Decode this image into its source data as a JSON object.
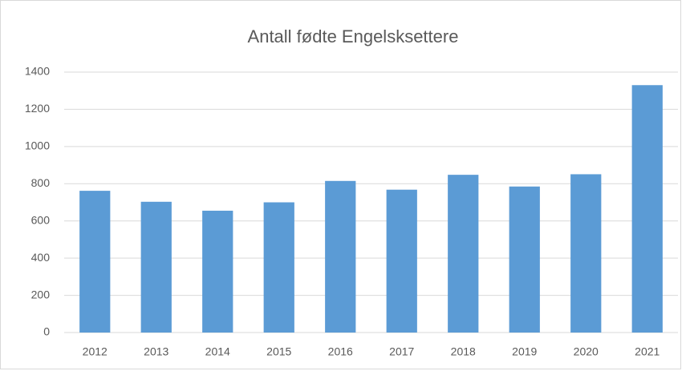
{
  "chart_data": {
    "type": "bar",
    "title": "Antall fødte Engelsksettere",
    "categories": [
      "2012",
      "2013",
      "2014",
      "2015",
      "2016",
      "2017",
      "2018",
      "2019",
      "2020",
      "2021"
    ],
    "values": [
      762,
      703,
      655,
      700,
      815,
      768,
      848,
      785,
      851,
      1330
    ],
    "color": "#5b9bd5",
    "ylim": [
      0,
      1400
    ],
    "yticks": [
      0,
      200,
      400,
      600,
      800,
      1000,
      1200,
      1400
    ],
    "grid": true
  }
}
